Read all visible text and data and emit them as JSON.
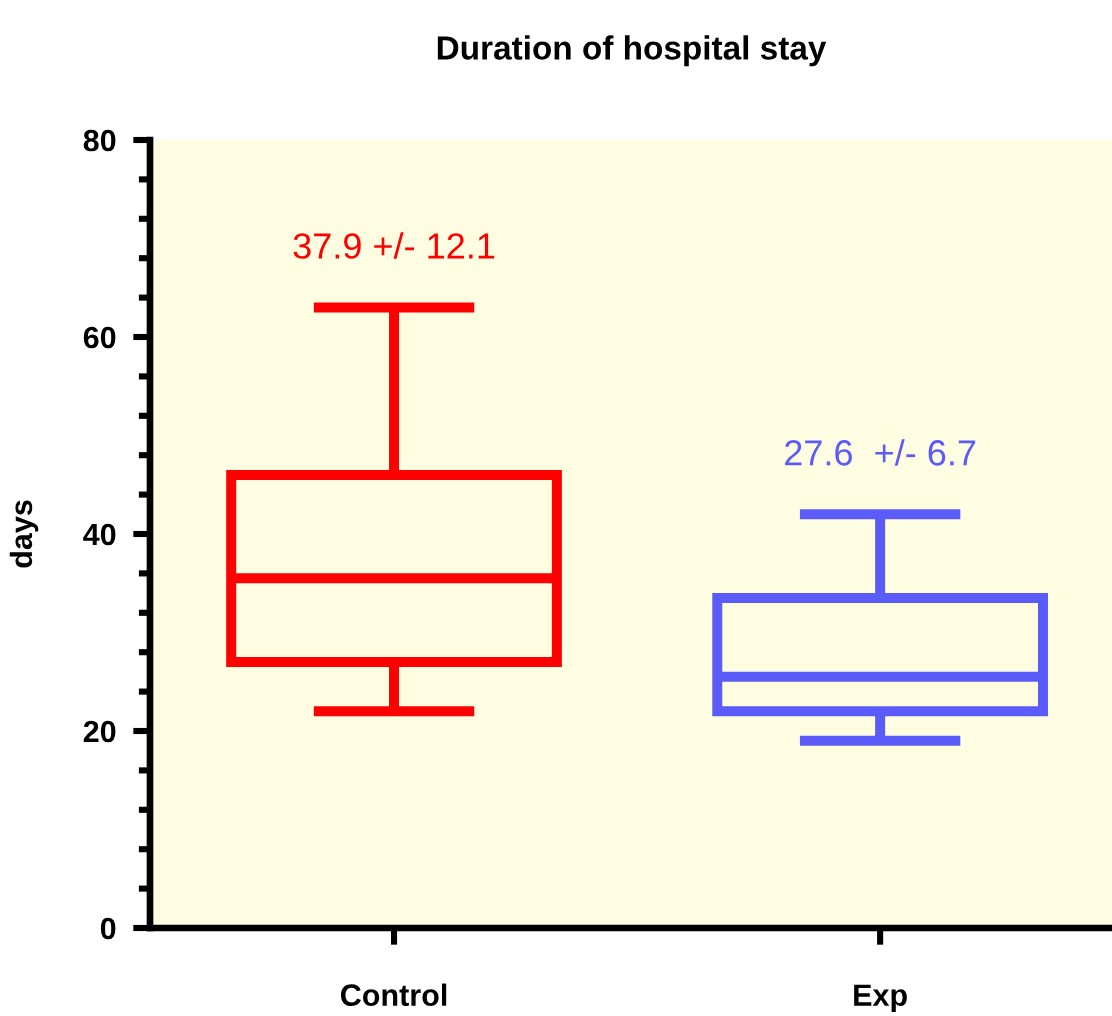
{
  "chart_data": {
    "type": "box",
    "title": "Duration of hospital stay",
    "ylabel": "days",
    "categories": [
      "Control",
      "Exp"
    ],
    "boxes": [
      {
        "low": 22,
        "q1": 27,
        "median": 35.5,
        "q3": 46,
        "high": 63
      },
      {
        "low": 19,
        "q1": 22,
        "median": 25.5,
        "q3": 33.5,
        "high": 42
      }
    ],
    "colors": [
      "#ff0000",
      "#5b5bfa"
    ],
    "ylim": [
      0,
      80
    ],
    "yticks": [
      0,
      {
        "value": 4,
        "label": null
      },
      {
        "value": 8,
        "label": null
      },
      {
        "value": 12,
        "label": null
      },
      {
        "value": 16,
        "label": null
      },
      20,
      {
        "value": 24,
        "label": null
      },
      {
        "value": 28,
        "label": null
      },
      {
        "value": 32,
        "label": null
      },
      {
        "value": 36,
        "label": null
      },
      40,
      {
        "value": 44,
        "label": null
      },
      {
        "value": 48,
        "label": null
      },
      {
        "value": 52,
        "label": null
      },
      {
        "value": 56,
        "label": null
      },
      60,
      {
        "value": 64,
        "label": null
      },
      {
        "value": 68,
        "label": null
      },
      {
        "value": 72,
        "label": null
      },
      {
        "value": 76,
        "label": null
      },
      80
    ],
    "annotations": [
      "37.9 +/- 12.1",
      "27.6  +/- 6.7"
    ]
  }
}
